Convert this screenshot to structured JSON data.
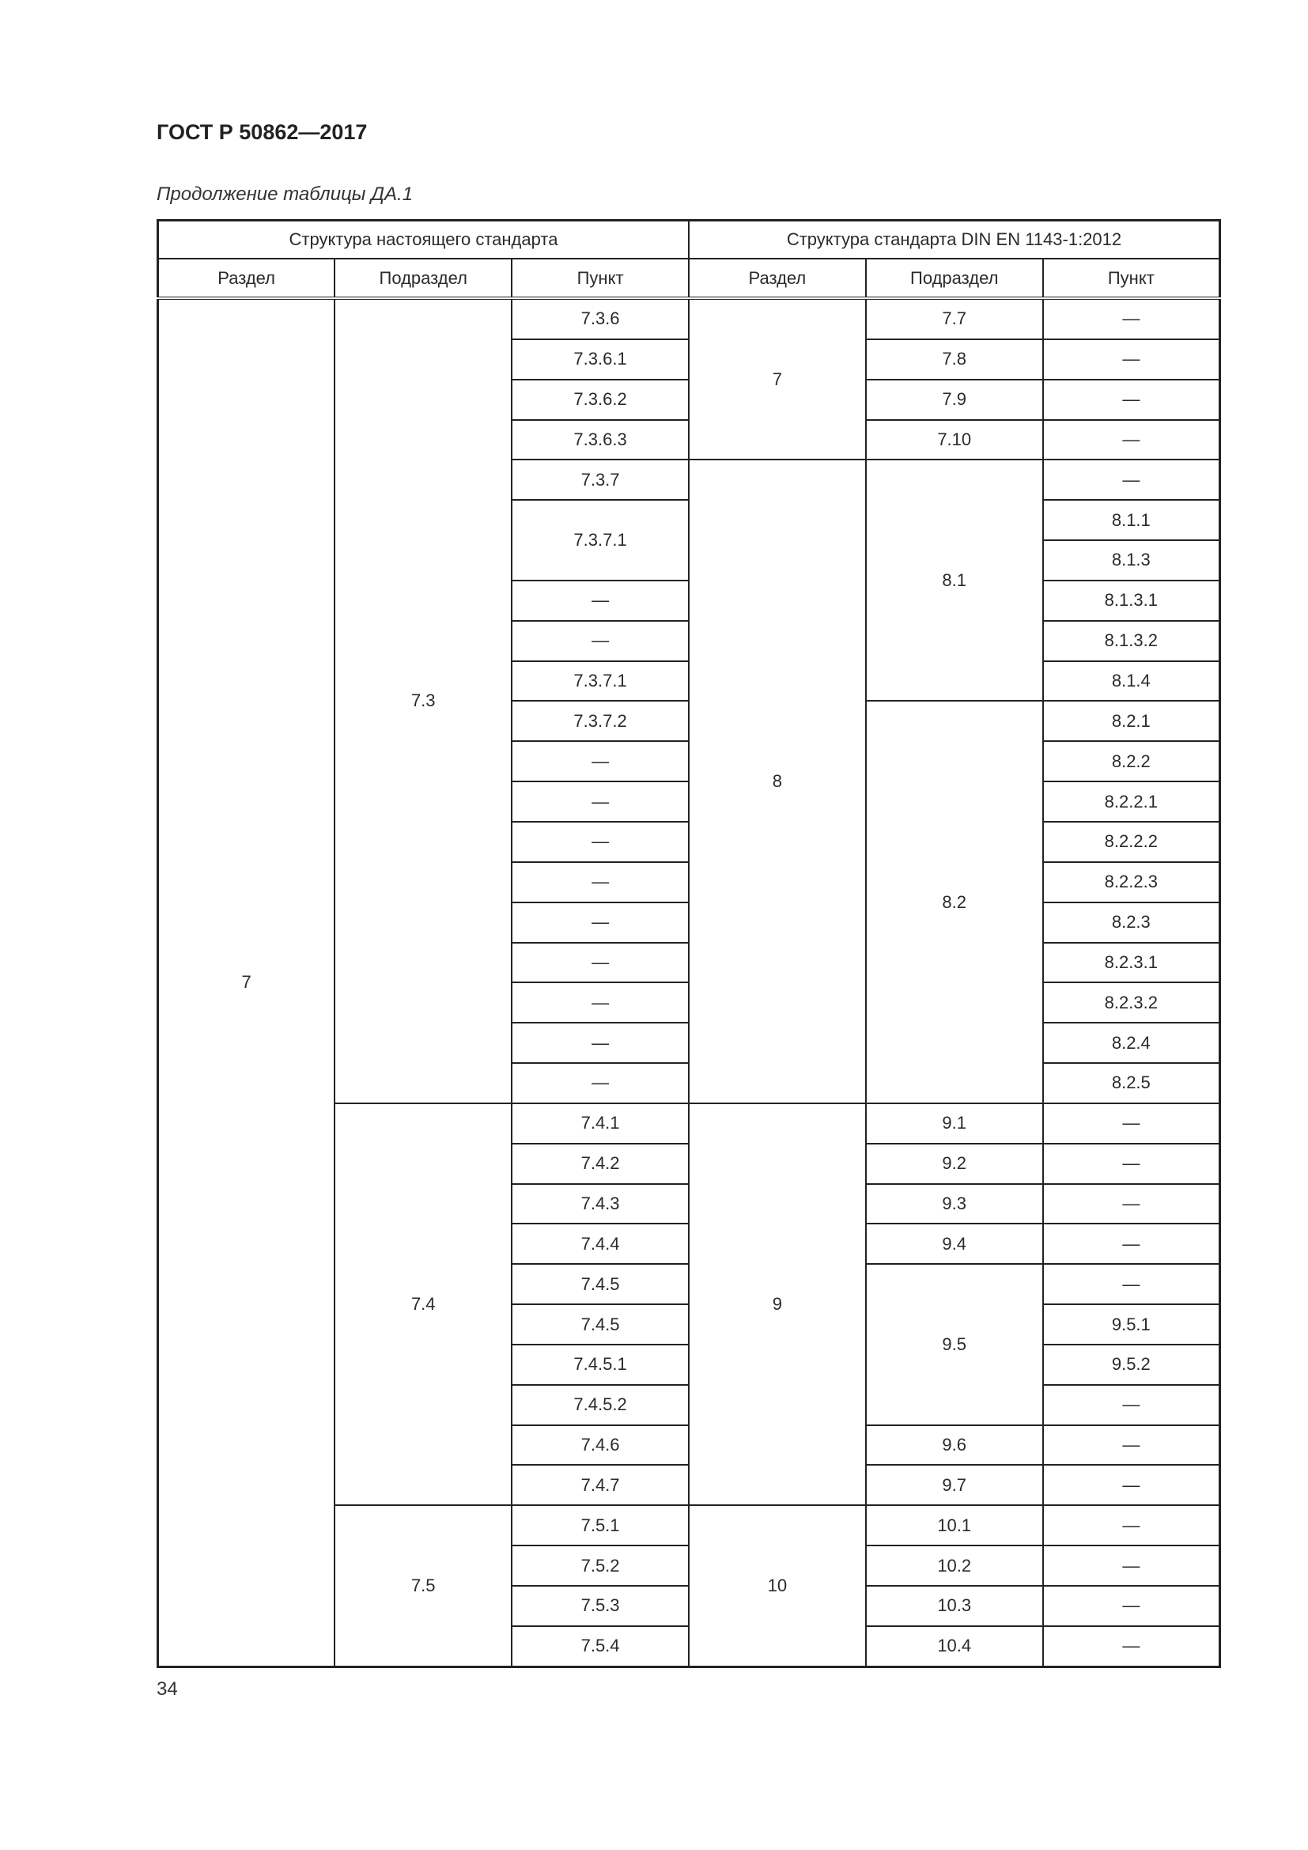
{
  "header": {
    "doc_title": "ГОСТ Р 50862—2017",
    "caption": "Продолжение таблицы ДА.1"
  },
  "table": {
    "group_headers": [
      "Структура настоящего стандарта",
      "Структура стандарта DIN EN 1143-1:2012"
    ],
    "column_headers": [
      "Раздел",
      "Подраздел",
      "Пункт",
      "Раздел",
      "Подраздел",
      "Пункт"
    ],
    "rows": [
      [
        {
          "t": "7",
          "rs": 34
        },
        {
          "t": "7.3",
          "rs": 20
        },
        {
          "t": "7.3.6"
        },
        {
          "t": "7",
          "rs": 4
        },
        {
          "t": "7.7"
        },
        {
          "t": "—"
        }
      ],
      [
        {
          "t": "7.3.6.1"
        },
        {
          "t": "7.8"
        },
        {
          "t": "—"
        }
      ],
      [
        {
          "t": "7.3.6.2"
        },
        {
          "t": "7.9"
        },
        {
          "t": "—"
        }
      ],
      [
        {
          "t": "7.3.6.3"
        },
        {
          "t": "7.10"
        },
        {
          "t": "—"
        }
      ],
      [
        {
          "t": "7.3.7"
        },
        {
          "t": "8",
          "rs": 16
        },
        {
          "t": "8.1",
          "rs": 6
        },
        {
          "t": "—"
        }
      ],
      [
        {
          "t": "7.3.7.1",
          "rs": 2
        },
        {
          "t": "8.1.1"
        }
      ],
      [
        {
          "t": "8.1.3"
        }
      ],
      [
        {
          "t": "—"
        },
        {
          "t": "8.1.3.1"
        }
      ],
      [
        {
          "t": "—"
        },
        {
          "t": "8.1.3.2"
        }
      ],
      [
        {
          "t": "7.3.7.1"
        },
        {
          "t": "8.1.4"
        }
      ],
      [
        {
          "t": "7.3.7.2"
        },
        {
          "t": "8.2",
          "rs": 10
        },
        {
          "t": "8.2.1"
        }
      ],
      [
        {
          "t": "—"
        },
        {
          "t": "8.2.2"
        }
      ],
      [
        {
          "t": "—"
        },
        {
          "t": "8.2.2.1"
        }
      ],
      [
        {
          "t": "—"
        },
        {
          "t": "8.2.2.2"
        }
      ],
      [
        {
          "t": "—"
        },
        {
          "t": "8.2.2.3"
        }
      ],
      [
        {
          "t": "—"
        },
        {
          "t": "8.2.3"
        }
      ],
      [
        {
          "t": "—"
        },
        {
          "t": "8.2.3.1"
        }
      ],
      [
        {
          "t": "—"
        },
        {
          "t": "8.2.3.2"
        }
      ],
      [
        {
          "t": "—"
        },
        {
          "t": "8.2.4"
        }
      ],
      [
        {
          "t": "—"
        },
        {
          "t": "8.2.5"
        }
      ],
      [
        {
          "t": "7.4",
          "rs": 10
        },
        {
          "t": "7.4.1"
        },
        {
          "t": "9",
          "rs": 10
        },
        {
          "t": "9.1"
        },
        {
          "t": "—"
        }
      ],
      [
        {
          "t": "7.4.2"
        },
        {
          "t": "9.2"
        },
        {
          "t": "—"
        }
      ],
      [
        {
          "t": "7.4.3"
        },
        {
          "t": "9.3"
        },
        {
          "t": "—"
        }
      ],
      [
        {
          "t": "7.4.4"
        },
        {
          "t": "9.4"
        },
        {
          "t": "—"
        }
      ],
      [
        {
          "t": "7.4.5"
        },
        {
          "t": "9.5",
          "rs": 4
        },
        {
          "t": "—"
        }
      ],
      [
        {
          "t": "7.4.5"
        },
        {
          "t": "9.5.1"
        }
      ],
      [
        {
          "t": "7.4.5.1"
        },
        {
          "t": "9.5.2"
        }
      ],
      [
        {
          "t": "7.4.5.2"
        },
        {
          "t": "—"
        }
      ],
      [
        {
          "t": "7.4.6"
        },
        {
          "t": "9.6"
        },
        {
          "t": "—"
        }
      ],
      [
        {
          "t": "7.4.7"
        },
        {
          "t": "9.7"
        },
        {
          "t": "—"
        }
      ],
      [
        {
          "t": "7.5",
          "rs": 4
        },
        {
          "t": "7.5.1"
        },
        {
          "t": "10",
          "rs": 4
        },
        {
          "t": "10.1"
        },
        {
          "t": "—"
        }
      ],
      [
        {
          "t": "7.5.2"
        },
        {
          "t": "10.2"
        },
        {
          "t": "—"
        }
      ],
      [
        {
          "t": "7.5.3"
        },
        {
          "t": "10.3"
        },
        {
          "t": "—"
        }
      ],
      [
        {
          "t": "7.5.4"
        },
        {
          "t": "10.4"
        },
        {
          "t": "—"
        }
      ]
    ]
  },
  "footer": {
    "page_number": "34"
  }
}
